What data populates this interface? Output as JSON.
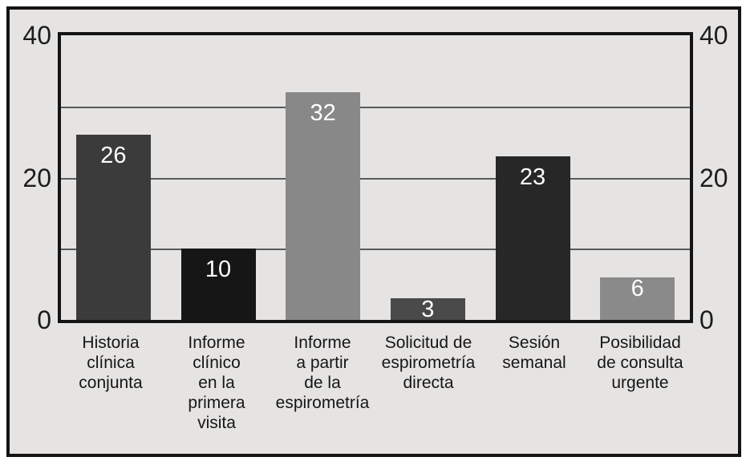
{
  "chart_data": {
    "type": "bar",
    "title": "",
    "xlabel": "",
    "ylabel": "",
    "legend": "none",
    "grid": true,
    "ylim": [
      0,
      40
    ],
    "categories": [
      "Historia\nclínica\nconjunta",
      "Informe\nclínico\nen la\nprimera\nvisita",
      "Informe\na partir\nde la\nespirometría",
      "Solicitud de\nespirometría\ndirecta",
      "Sesión\nsemanal",
      "Posibilidad\nde consulta\nurgente"
    ],
    "values": [
      26,
      10,
      32,
      3,
      23,
      6
    ],
    "value_labels": [
      "26",
      "10",
      "32",
      "3",
      "23",
      "6"
    ],
    "bar_colors": [
      "#3b3b3b",
      "#161616",
      "#888888",
      "#4a4a4a",
      "#272727",
      "#8a8a8a"
    ],
    "value_label_color": "#ffffff",
    "y_ticks": [
      {
        "value": 40,
        "label": "40"
      },
      {
        "value": 20,
        "label": "20"
      },
      {
        "value": 0,
        "label": "0"
      }
    ],
    "y_axis_sides": [
      "left",
      "right"
    ],
    "gridline_values": [
      30,
      20,
      10
    ]
  },
  "style": {
    "outer_background": "#ffffff",
    "plot_background": "#e5e4e3",
    "frame_border_color": "#141414",
    "gridline_color": "#5a5a5a",
    "axis_text_color": "#1c1c1c",
    "category_text_color": "#161616"
  }
}
